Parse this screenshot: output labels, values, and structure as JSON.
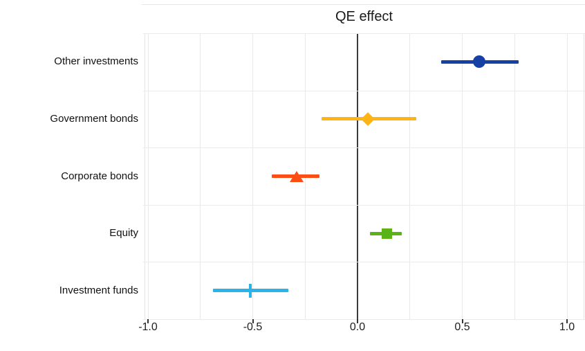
{
  "chart_data": {
    "type": "scatter",
    "title": "QE effect",
    "orientation": "horizontal-errorbar",
    "categories": [
      "Other investments",
      "Government bonds",
      "Corporate bonds",
      "Equity",
      "Investment funds"
    ],
    "series": [
      {
        "name": "Other investments",
        "marker": "circle",
        "color": "#1540a5",
        "estimate": 0.58,
        "ci_low": 0.4,
        "ci_high": 0.77
      },
      {
        "name": "Government bonds",
        "marker": "diamond",
        "color": "#fdb414",
        "estimate": 0.05,
        "ci_low": -0.17,
        "ci_high": 0.28
      },
      {
        "name": "Corporate bonds",
        "marker": "triangle",
        "color": "#fc4d14",
        "estimate": -0.29,
        "ci_low": -0.41,
        "ci_high": -0.18
      },
      {
        "name": "Equity",
        "marker": "square",
        "color": "#5cb317",
        "estimate": 0.14,
        "ci_low": 0.06,
        "ci_high": 0.21
      },
      {
        "name": "Investment funds",
        "marker": "vline",
        "color": "#2ab3e8",
        "estimate": -0.51,
        "ci_low": -0.69,
        "ci_high": -0.33
      }
    ],
    "x_axis": {
      "min": -1.0,
      "max": 1.0,
      "ticks": [
        -1.0,
        -0.5,
        0.0,
        0.5,
        1.0
      ],
      "tick_labels": [
        "-1.0",
        "-0.5",
        "0.0",
        "0.5",
        "1.0"
      ],
      "zero_line": true
    },
    "grid": {
      "vertical_step": 0.25,
      "horizontal_row_separators": true,
      "legend": "none"
    },
    "colors": {
      "grid": "#e9e9e9",
      "zero_line": "#3a3a3a",
      "axis_text": "#202020",
      "category_text": "#111111",
      "background": "#ffffff"
    }
  }
}
